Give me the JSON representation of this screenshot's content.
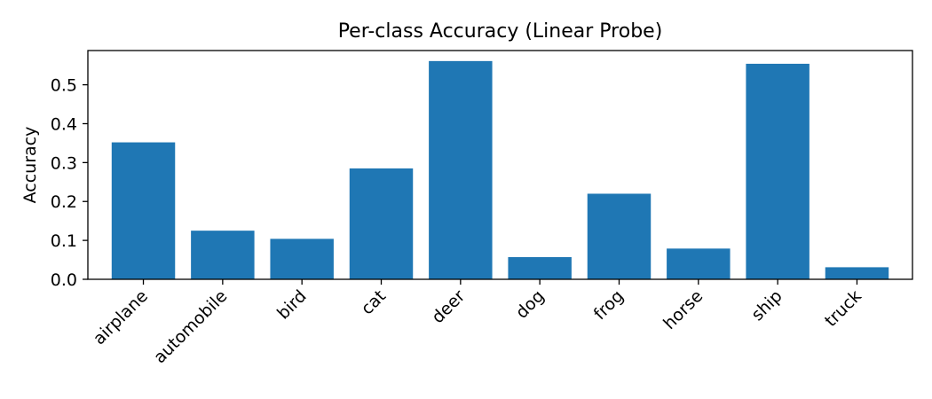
{
  "chart_data": {
    "type": "bar",
    "title": "Per-class Accuracy (Linear Probe)",
    "xlabel": "",
    "ylabel": "Accuracy",
    "categories": [
      "airplane",
      "automobile",
      "bird",
      "cat",
      "deer",
      "dog",
      "frog",
      "horse",
      "ship",
      "truck"
    ],
    "values": [
      0.352,
      0.125,
      0.104,
      0.285,
      0.561,
      0.057,
      0.22,
      0.079,
      0.554,
      0.031
    ],
    "ylim": [
      0,
      0.588
    ],
    "yticks": [
      0.0,
      0.1,
      0.2,
      0.3,
      0.4,
      0.5
    ],
    "ytick_labels": [
      "0.0",
      "0.1",
      "0.2",
      "0.3",
      "0.4",
      "0.5"
    ],
    "grid": false,
    "legend": "none",
    "bar_color": "#1f77b4"
  }
}
